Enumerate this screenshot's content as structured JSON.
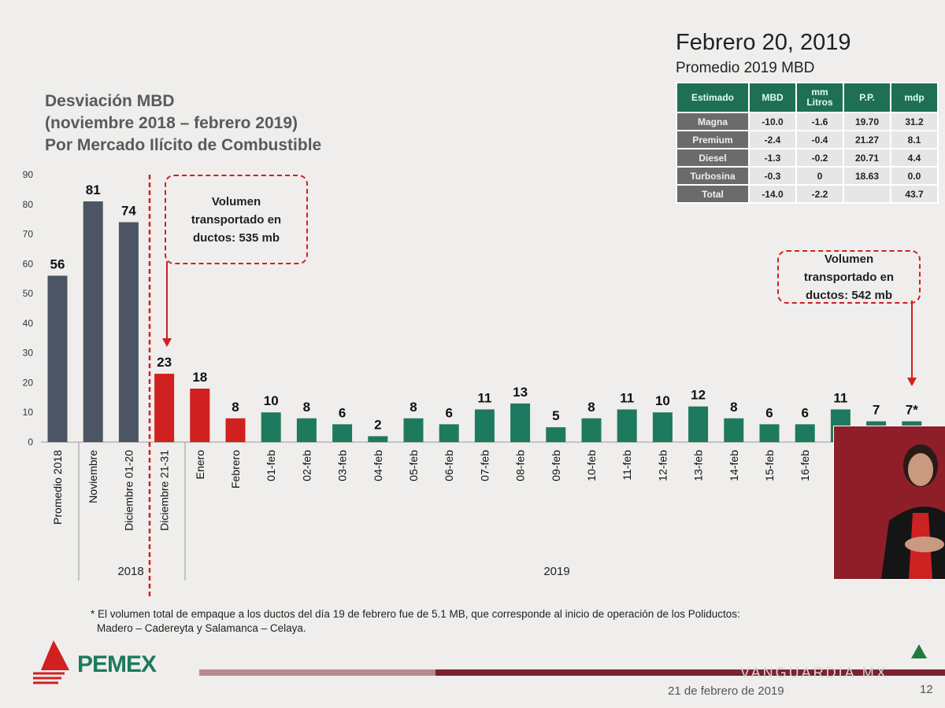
{
  "title_lines": [
    "Desviación MBD",
    "(noviembre 2018 – febrero 2019)",
    "Por Mercado Ilícito de Combustible"
  ],
  "date_heading": "Febrero 20, 2019",
  "table_caption": "Promedio 2019 MBD",
  "table": {
    "headers": [
      "Estimado",
      "MBD",
      "mm Litros",
      "P.P.",
      "mdp"
    ],
    "rows": [
      [
        "Magna",
        "-10.0",
        "-1.6",
        "19.70",
        "31.2"
      ],
      [
        "Premium",
        "-2.4",
        "-0.4",
        "21.27",
        "8.1"
      ],
      [
        "Diesel",
        "-1.3",
        "-0.2",
        "20.71",
        "4.4"
      ],
      [
        "Turbosina",
        "-0.3",
        "0",
        "18.63",
        "0.0"
      ],
      [
        "Total",
        "-14.0",
        "-2.2",
        "",
        "43.7"
      ]
    ]
  },
  "callouts": [
    {
      "text": "Volumen transportado en ductos: 535 mb"
    },
    {
      "text": "Volumen transportado en ductos: 542 mb"
    }
  ],
  "chart_data": {
    "type": "bar",
    "ylim": [
      0,
      90
    ],
    "yticks": [
      0,
      10,
      20,
      30,
      40,
      50,
      60,
      70,
      80,
      90
    ],
    "grid": false,
    "categories": [
      "Promedio 2018",
      "Noviembre",
      "Diciembre 01-20",
      "Diciembre 21-31",
      "Enero",
      "Febrero",
      "01-feb",
      "02-feb",
      "03-feb",
      "04-feb",
      "05-feb",
      "06-feb",
      "07-feb",
      "08-feb",
      "09-feb",
      "10-feb",
      "11-feb",
      "12-feb",
      "13-feb",
      "14-feb",
      "15-feb",
      "16-feb",
      "",
      "",
      ""
    ],
    "values": [
      56,
      81,
      74,
      23,
      18,
      8,
      10,
      8,
      6,
      2,
      8,
      6,
      11,
      13,
      5,
      8,
      11,
      10,
      12,
      8,
      6,
      6,
      11,
      7,
      7
    ],
    "data_labels": [
      "56",
      "81",
      "74",
      "23",
      "18",
      "8",
      "10",
      "8",
      "6",
      "2",
      "8",
      "6",
      "11",
      "13",
      "5",
      "8",
      "11",
      "10",
      "12",
      "8",
      "6",
      "6",
      "11",
      "7",
      "7*"
    ],
    "bar_colors": [
      "#4b5563",
      "#4b5563",
      "#4b5563",
      "#d0201f",
      "#d0201f",
      "#d0201f",
      "#1e7a5e",
      "#1e7a5e",
      "#1e7a5e",
      "#1e7a5e",
      "#1e7a5e",
      "#1e7a5e",
      "#1e7a5e",
      "#1e7a5e",
      "#1e7a5e",
      "#1e7a5e",
      "#1e7a5e",
      "#1e7a5e",
      "#1e7a5e",
      "#1e7a5e",
      "#1e7a5e",
      "#1e7a5e",
      "#1e7a5e",
      "#1e7a5e",
      "#1e7a5e"
    ],
    "groups": [
      {
        "label": "2018"
      },
      {
        "label": "2019"
      }
    ]
  },
  "footnote_lines": [
    "* El volumen total de empaque a los ductos del día 19 de febrero fue de 5.1 MB, que corresponde al inicio de operación de los Poliductos:",
    "Madero – Cadereyta y Salamanca – Celaya."
  ],
  "logo_text": "PEMEX",
  "footer_date": "21 de febrero de 2019",
  "page_number": "12",
  "watermark": "VANGUARDIA MX"
}
